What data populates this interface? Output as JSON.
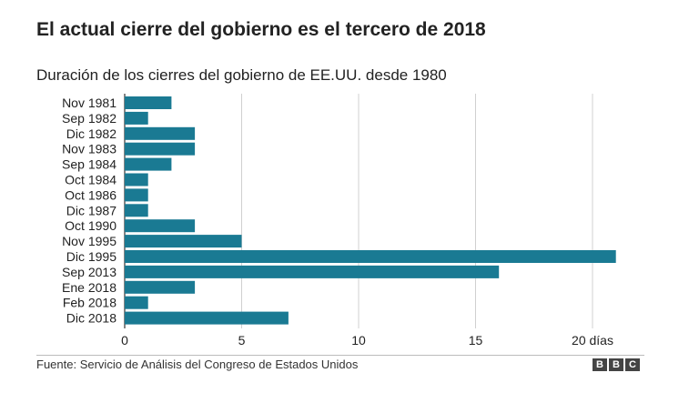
{
  "title": "El actual cierre del gobierno es el tercero de 2018",
  "subtitle": "Duración de los cierres del gobierno de EE.UU. desde 1980",
  "source": "Fuente: Servicio de Análisis del Congreso de Estados Unidos",
  "logo": [
    "B",
    "B",
    "C"
  ],
  "colors": {
    "bar": "#1a7a93",
    "grid": "#d0d0d0",
    "text": "#222222"
  },
  "chart_data": {
    "type": "bar",
    "orientation": "horizontal",
    "categories": [
      "Nov 1981",
      "Sep 1982",
      "Dic 1982",
      "Nov 1983",
      "Sep 1984",
      "Oct 1984",
      "Oct 1986",
      "Dic 1987",
      "Oct 1990",
      "Nov 1995",
      "Dic 1995",
      "Sep 2013",
      "Ene 2018",
      "Feb 2018",
      "Dic 2018"
    ],
    "values": [
      2,
      1,
      3,
      3,
      2,
      1,
      1,
      1,
      3,
      5,
      21,
      16,
      3,
      1,
      7
    ],
    "xlim": [
      0,
      21
    ],
    "xticks": [
      0,
      5,
      10,
      15,
      20
    ],
    "xtick_labels": [
      "0",
      "5",
      "10",
      "15",
      "20 días"
    ],
    "grid": true
  }
}
